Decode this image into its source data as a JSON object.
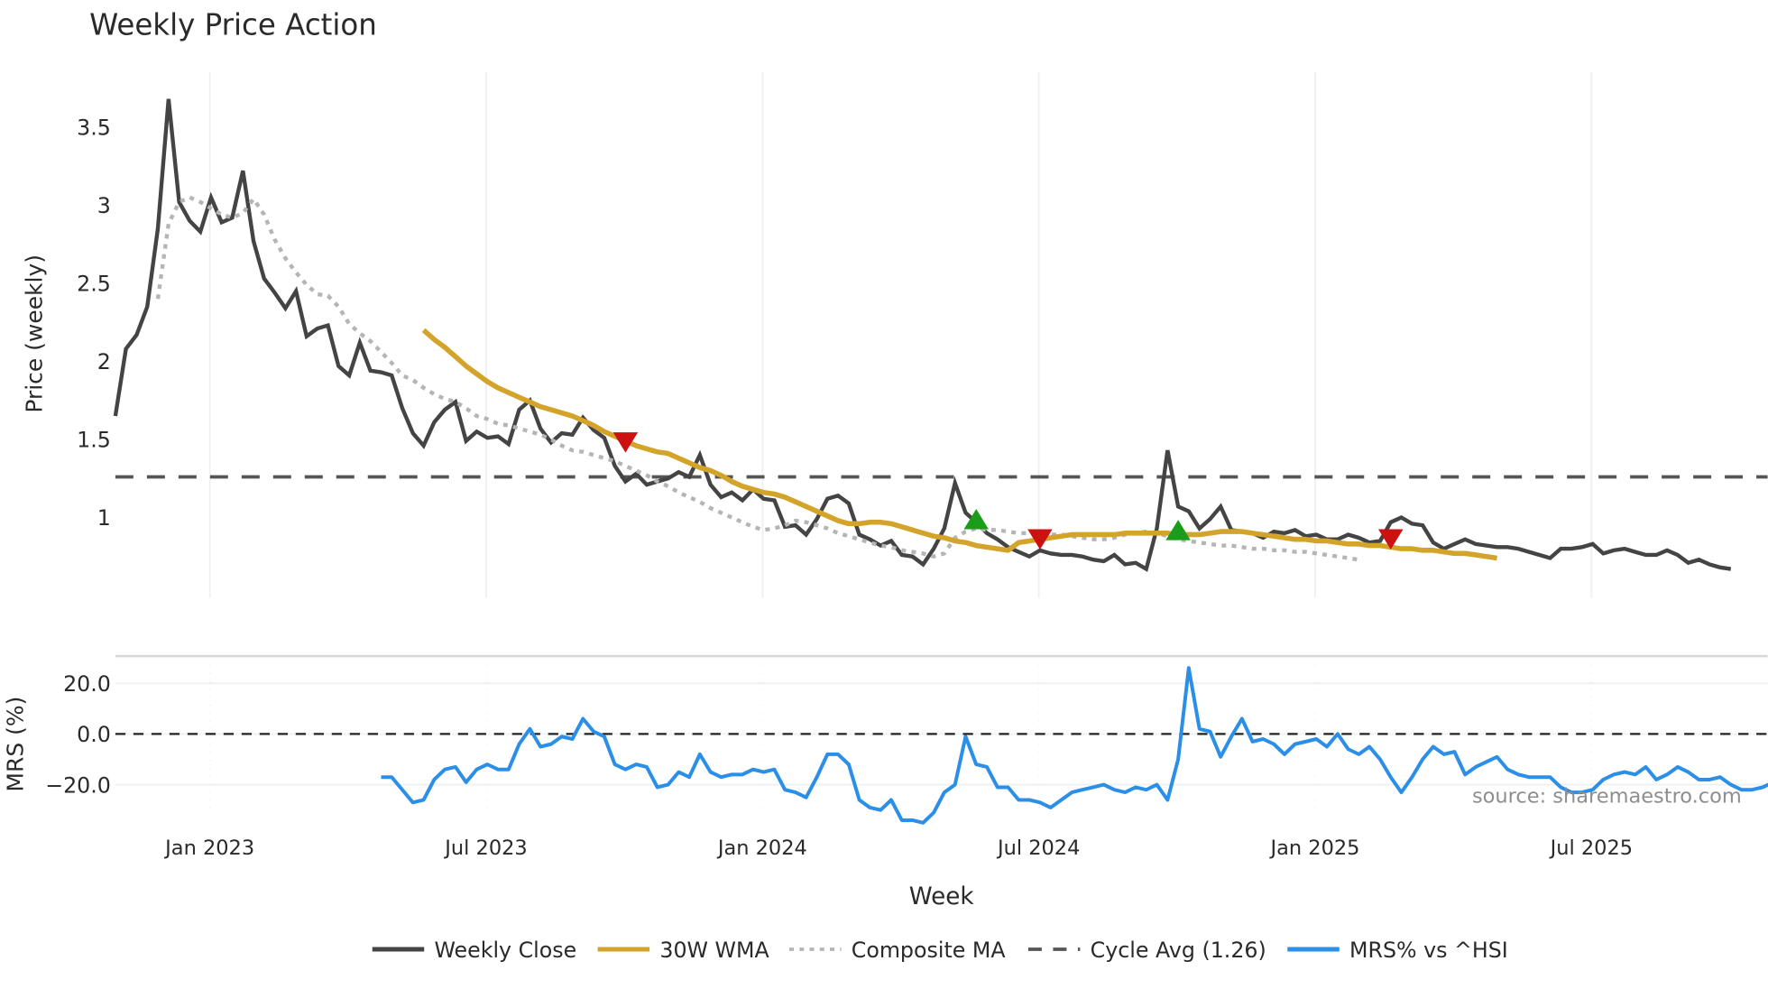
{
  "title": "Weekly Price Action",
  "source_note": "source: sharemaestro.com",
  "colors": {
    "weekly_close": "#444444",
    "wma": "#d4a32a",
    "composite_ma": "#b5b5b5",
    "cycle_avg": "#555555",
    "mrs": "#2b8fe8",
    "buy_marker": "#1a9e1a",
    "sell_marker": "#cc1111",
    "grid": "#eef0f3"
  },
  "chart_data": [
    {
      "type": "line",
      "title": "Weekly Price Action",
      "xlabel": "",
      "ylabel": "Price (weekly)",
      "ylim": [
        0.45,
        3.85
      ],
      "yticks": [
        1,
        1.5,
        2,
        2.5,
        3,
        3.5
      ],
      "ytick_labels": [
        "1",
        "1.5",
        "2",
        "2.5",
        "3",
        "3.5"
      ],
      "x_tick_labels": [
        "Jan 2023",
        "Jul 2023",
        "Jan 2024",
        "Jul 2024",
        "Jan 2025",
        "Jul 2025"
      ],
      "x_tick_week_index": [
        9,
        35,
        61,
        87,
        113,
        139
      ],
      "grid": "vertical",
      "series": [
        {
          "name": "Weekly Close",
          "start_week_index": 0,
          "values": [
            1.65,
            2.08,
            2.17,
            2.35,
            2.85,
            3.68,
            3.02,
            2.9,
            2.83,
            3.05,
            2.89,
            2.92,
            3.22,
            2.77,
            2.53,
            2.44,
            2.34,
            2.45,
            2.16,
            2.21,
            2.23,
            1.97,
            1.91,
            2.12,
            1.94,
            1.93,
            1.91,
            1.7,
            1.54,
            1.46,
            1.61,
            1.69,
            1.74,
            1.49,
            1.55,
            1.51,
            1.52,
            1.47,
            1.69,
            1.75,
            1.57,
            1.48,
            1.54,
            1.53,
            1.64,
            1.56,
            1.51,
            1.33,
            1.23,
            1.28,
            1.21,
            1.23,
            1.25,
            1.29,
            1.26,
            1.4,
            1.21,
            1.13,
            1.16,
            1.11,
            1.18,
            1.12,
            1.11,
            0.94,
            0.95,
            0.89,
            0.99,
            1.12,
            1.14,
            1.09,
            0.89,
            0.86,
            0.82,
            0.85,
            0.76,
            0.75,
            0.7,
            0.8,
            0.93,
            1.22,
            1.03,
            0.97,
            0.9,
            0.86,
            0.81,
            0.78,
            0.75,
            0.79,
            0.77,
            0.76,
            0.76,
            0.75,
            0.73,
            0.72,
            0.76,
            0.7,
            0.71,
            0.67,
            0.93,
            1.43,
            1.07,
            1.04,
            0.93,
            0.99,
            1.07,
            0.92,
            0.91,
            0.9,
            0.87,
            0.91,
            0.9,
            0.92,
            0.88,
            0.89,
            0.86,
            0.86,
            0.89,
            0.87,
            0.84,
            0.85,
            0.97,
            1.0,
            0.96,
            0.95,
            0.84,
            0.8,
            0.83,
            0.86,
            0.83,
            0.82,
            0.81,
            0.81,
            0.8,
            0.78,
            0.76,
            0.74,
            0.8,
            0.8,
            0.81,
            0.83,
            0.77,
            0.79,
            0.8,
            0.78,
            0.76,
            0.76,
            0.79,
            0.76,
            0.71,
            0.73,
            0.7,
            0.68,
            0.67
          ]
        },
        {
          "name": "30W WMA",
          "start_week_index": 29,
          "values": [
            2.2,
            2.14,
            2.09,
            2.03,
            1.97,
            1.92,
            1.87,
            1.83,
            1.8,
            1.77,
            1.74,
            1.71,
            1.69,
            1.67,
            1.65,
            1.62,
            1.59,
            1.55,
            1.52,
            1.49,
            1.46,
            1.44,
            1.42,
            1.41,
            1.38,
            1.35,
            1.32,
            1.3,
            1.27,
            1.23,
            1.2,
            1.18,
            1.16,
            1.15,
            1.13,
            1.1,
            1.07,
            1.04,
            1.01,
            0.98,
            0.96,
            0.96,
            0.97,
            0.97,
            0.96,
            0.94,
            0.92,
            0.9,
            0.88,
            0.87,
            0.85,
            0.84,
            0.82,
            0.81,
            0.8,
            0.79,
            0.84,
            0.85,
            0.86,
            0.87,
            0.88,
            0.89,
            0.89,
            0.89,
            0.89,
            0.89,
            0.9,
            0.9,
            0.9,
            0.9,
            0.9,
            0.89,
            0.89,
            0.89,
            0.9,
            0.91,
            0.91,
            0.91,
            0.9,
            0.89,
            0.88,
            0.87,
            0.86,
            0.86,
            0.85,
            0.85,
            0.84,
            0.83,
            0.83,
            0.82,
            0.82,
            0.81,
            0.8,
            0.8,
            0.79,
            0.79,
            0.78,
            0.77,
            0.77,
            0.76,
            0.75,
            0.74
          ]
        },
        {
          "name": "Composite MA",
          "start_week_index": 4,
          "values": [
            2.4,
            2.88,
            3.02,
            3.05,
            3.02,
            2.98,
            2.94,
            2.92,
            2.95,
            3.04,
            2.94,
            2.78,
            2.66,
            2.57,
            2.49,
            2.43,
            2.42,
            2.35,
            2.24,
            2.18,
            2.13,
            2.06,
            1.99,
            1.91,
            1.88,
            1.83,
            1.79,
            1.76,
            1.74,
            1.7,
            1.65,
            1.63,
            1.6,
            1.59,
            1.57,
            1.55,
            1.53,
            1.5,
            1.46,
            1.43,
            1.42,
            1.4,
            1.38,
            1.36,
            1.33,
            1.3,
            1.27,
            1.23,
            1.2,
            1.16,
            1.13,
            1.1,
            1.06,
            1.03,
            1.0,
            0.97,
            0.94,
            0.92,
            0.93,
            0.95,
            0.98,
            0.97,
            0.95,
            0.93,
            0.9,
            0.88,
            0.86,
            0.84,
            0.82,
            0.81,
            0.79,
            0.78,
            0.77,
            0.75,
            0.77,
            0.87,
            0.91,
            0.93,
            0.92,
            0.92,
            0.91,
            0.9,
            0.9,
            0.9,
            0.89,
            0.89,
            0.88,
            0.87,
            0.86,
            0.86,
            0.87,
            0.89,
            0.9,
            0.91,
            0.9,
            0.88,
            0.86,
            0.85,
            0.84,
            0.83,
            0.82,
            0.82,
            0.81,
            0.8,
            0.8,
            0.79,
            0.79,
            0.78,
            0.78,
            0.77,
            0.76,
            0.75,
            0.74,
            0.73
          ]
        },
        {
          "name": "Cycle Avg (1.26)",
          "constant": 1.26
        }
      ],
      "markers": [
        {
          "type": "sell",
          "week_index": 48,
          "value": 1.48
        },
        {
          "type": "buy",
          "week_index": 81,
          "value": 0.99
        },
        {
          "type": "sell",
          "week_index": 87,
          "value": 0.86
        },
        {
          "type": "buy",
          "week_index": 100,
          "value": 0.92
        },
        {
          "type": "sell",
          "week_index": 120,
          "value": 0.86
        }
      ]
    },
    {
      "type": "line",
      "title": "",
      "xlabel": "Week",
      "ylabel": "MRS (%)",
      "ylim": [
        -37,
        30
      ],
      "yticks": [
        -20,
        0,
        20
      ],
      "ytick_labels": [
        "−20.0",
        "0.0",
        "20.0"
      ],
      "reference_line": 0,
      "series": [
        {
          "name": "MRS% vs ^HSI",
          "start_week_index": 25,
          "values": [
            -17,
            -17,
            -22,
            -27,
            -26,
            -18,
            -14,
            -13,
            -19,
            -14,
            -12,
            -14,
            -14,
            -4,
            2,
            -5,
            -4,
            -1,
            -2,
            6,
            1,
            -1,
            -12,
            -14,
            -12,
            -13,
            -21,
            -20,
            -15,
            -17,
            -8,
            -15,
            -17,
            -16,
            -16,
            -14,
            -15,
            -14,
            -22,
            -23,
            -25,
            -17,
            -8,
            -8,
            -12,
            -26,
            -29,
            -30,
            -26,
            -34,
            -34,
            -35,
            -31,
            -23,
            -20,
            -1,
            -12,
            -13,
            -21,
            -21,
            -26,
            -26,
            -27,
            -29,
            -26,
            -23,
            -22,
            -21,
            -20,
            -22,
            -23,
            -21,
            -22,
            -20,
            -26,
            -10,
            26,
            2,
            1,
            -9,
            -1,
            6,
            -3,
            -2,
            -4,
            -8,
            -4,
            -3,
            -2,
            -5,
            0,
            -6,
            -8,
            -5,
            -10,
            -17,
            -23,
            -17,
            -10,
            -5,
            -8,
            -7,
            -16,
            -13,
            -11,
            -9,
            -14,
            -16,
            -17,
            -17,
            -17,
            -21,
            -23,
            -23,
            -22,
            -18,
            -16,
            -15,
            -16,
            -13,
            -18,
            -16,
            -13,
            -15,
            -18,
            -18,
            -17,
            -20,
            -22,
            -22,
            -21,
            -19,
            -22
          ]
        }
      ]
    }
  ],
  "axes": {
    "price": {
      "label": "Price (weekly)",
      "ticks": [
        {
          "value": 3.5,
          "label": "3.5"
        },
        {
          "value": 3,
          "label": "3"
        },
        {
          "value": 2.5,
          "label": "2.5"
        },
        {
          "value": 2,
          "label": "2"
        },
        {
          "value": 1.5,
          "label": "1.5"
        },
        {
          "value": 1,
          "label": "1"
        }
      ]
    },
    "mrs": {
      "label": "MRS (%)",
      "ticks": [
        {
          "value": 20,
          "label": "20.0"
        },
        {
          "value": 0,
          "label": "0.0"
        },
        {
          "value": -20,
          "label": "−20.0"
        }
      ]
    },
    "x": {
      "label": "Week",
      "ticks": [
        {
          "label": "Jan 2023"
        },
        {
          "label": "Jul 2023"
        },
        {
          "label": "Jan 2024"
        },
        {
          "label": "Jul 2024"
        },
        {
          "label": "Jan 2025"
        },
        {
          "label": "Jul 2025"
        }
      ]
    }
  },
  "legend": [
    {
      "label": "Weekly Close",
      "style": "solid",
      "color": "#444444"
    },
    {
      "label": "30W WMA",
      "style": "solid",
      "color": "#d4a32a"
    },
    {
      "label": "Composite MA",
      "style": "dotted",
      "color": "#b5b5b5"
    },
    {
      "label": "Cycle Avg (1.26)",
      "style": "dashed",
      "color": "#555555"
    },
    {
      "label": "MRS% vs ^HSI",
      "style": "solid",
      "color": "#2b8fe8"
    }
  ]
}
